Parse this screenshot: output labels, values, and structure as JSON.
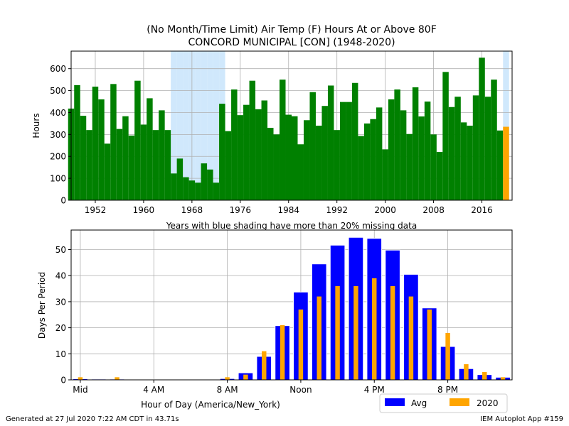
{
  "chart_data": [
    {
      "type": "bar",
      "title_line1": "(No Month/Time Limit) Air Temp (F) Hours At or Above 80F",
      "title_line2": "CONCORD MUNICIPAL [CON] (1948-2020)",
      "ylabel": "Hours",
      "xlabel": "",
      "note": "Years with blue shading have more than 20% missing data",
      "xlim": [
        1948,
        2021
      ],
      "ylim": [
        0,
        680
      ],
      "yticks": [
        0,
        100,
        200,
        300,
        400,
        500,
        600
      ],
      "xticks": [
        1952,
        1960,
        1968,
        1976,
        1984,
        1992,
        2000,
        2008,
        2016
      ],
      "grid": true,
      "years": [
        1948,
        1949,
        1950,
        1951,
        1952,
        1953,
        1954,
        1955,
        1956,
        1957,
        1958,
        1959,
        1960,
        1961,
        1962,
        1963,
        1964,
        1965,
        1966,
        1967,
        1968,
        1969,
        1970,
        1971,
        1972,
        1973,
        1974,
        1975,
        1976,
        1977,
        1978,
        1979,
        1980,
        1981,
        1982,
        1983,
        1984,
        1985,
        1986,
        1987,
        1988,
        1989,
        1990,
        1991,
        1992,
        1993,
        1994,
        1995,
        1996,
        1997,
        1998,
        1999,
        2000,
        2001,
        2002,
        2003,
        2004,
        2005,
        2006,
        2007,
        2008,
        2009,
        2010,
        2011,
        2012,
        2013,
        2014,
        2015,
        2016,
        2017,
        2018,
        2019,
        2020
      ],
      "values": [
        418,
        525,
        385,
        320,
        518,
        460,
        258,
        530,
        325,
        383,
        295,
        545,
        345,
        465,
        320,
        410,
        320,
        122,
        190,
        105,
        90,
        80,
        168,
        140,
        80,
        440,
        315,
        505,
        388,
        435,
        545,
        415,
        455,
        330,
        300,
        550,
        390,
        383,
        255,
        365,
        493,
        340,
        430,
        523,
        320,
        448,
        448,
        535,
        293,
        350,
        370,
        423,
        232,
        460,
        505,
        410,
        302,
        515,
        382,
        450,
        300,
        220,
        585,
        425,
        472,
        355,
        340,
        478,
        650,
        472,
        550,
        318,
        335
      ],
      "missing_years": [
        1965,
        1966,
        1967,
        1968,
        1969,
        1970,
        1971,
        1972,
        1973,
        2020
      ],
      "colors": {
        "bar": "#008000",
        "current": "#ffa500",
        "missing": "#d0e8fc"
      }
    },
    {
      "type": "bar",
      "xlabel": "Hour of Day (America/New_York)",
      "ylabel": "Days Per Period",
      "xlim": [
        -0.5,
        23.5
      ],
      "ylim": [
        0,
        57.5
      ],
      "yticks": [
        0,
        10,
        20,
        30,
        40,
        50
      ],
      "xtick_positions": [
        0,
        4,
        8,
        12,
        16,
        20
      ],
      "xtick_labels": [
        "Mid",
        "4 AM",
        "8 AM",
        "Noon",
        "4 PM",
        "8 PM"
      ],
      "grid": true,
      "legend_position": "bottom-right",
      "series": [
        {
          "name": "Avg",
          "color": "#0000ff",
          "values": [
            0.4,
            0.3,
            0.3,
            0.1,
            0.1,
            0.1,
            0.1,
            0.2,
            0.5,
            2.7,
            9.0,
            20.8,
            33.7,
            44.5,
            51.7,
            54.7,
            54.3,
            49.8,
            40.5,
            27.6,
            12.8,
            4.3,
            2.0,
            1.0
          ]
        },
        {
          "name": "2020",
          "color": "#ffa500",
          "values": [
            1,
            0,
            1,
            0,
            0,
            0,
            0,
            0,
            1,
            2,
            11,
            21,
            27,
            32,
            36,
            36,
            39,
            36,
            32,
            27,
            18,
            6,
            3,
            1
          ]
        }
      ]
    }
  ],
  "footer": {
    "left": "Generated at 27 Jul 2020 7:22 AM CDT in 43.71s",
    "right": "IEM Autoplot App #159"
  }
}
